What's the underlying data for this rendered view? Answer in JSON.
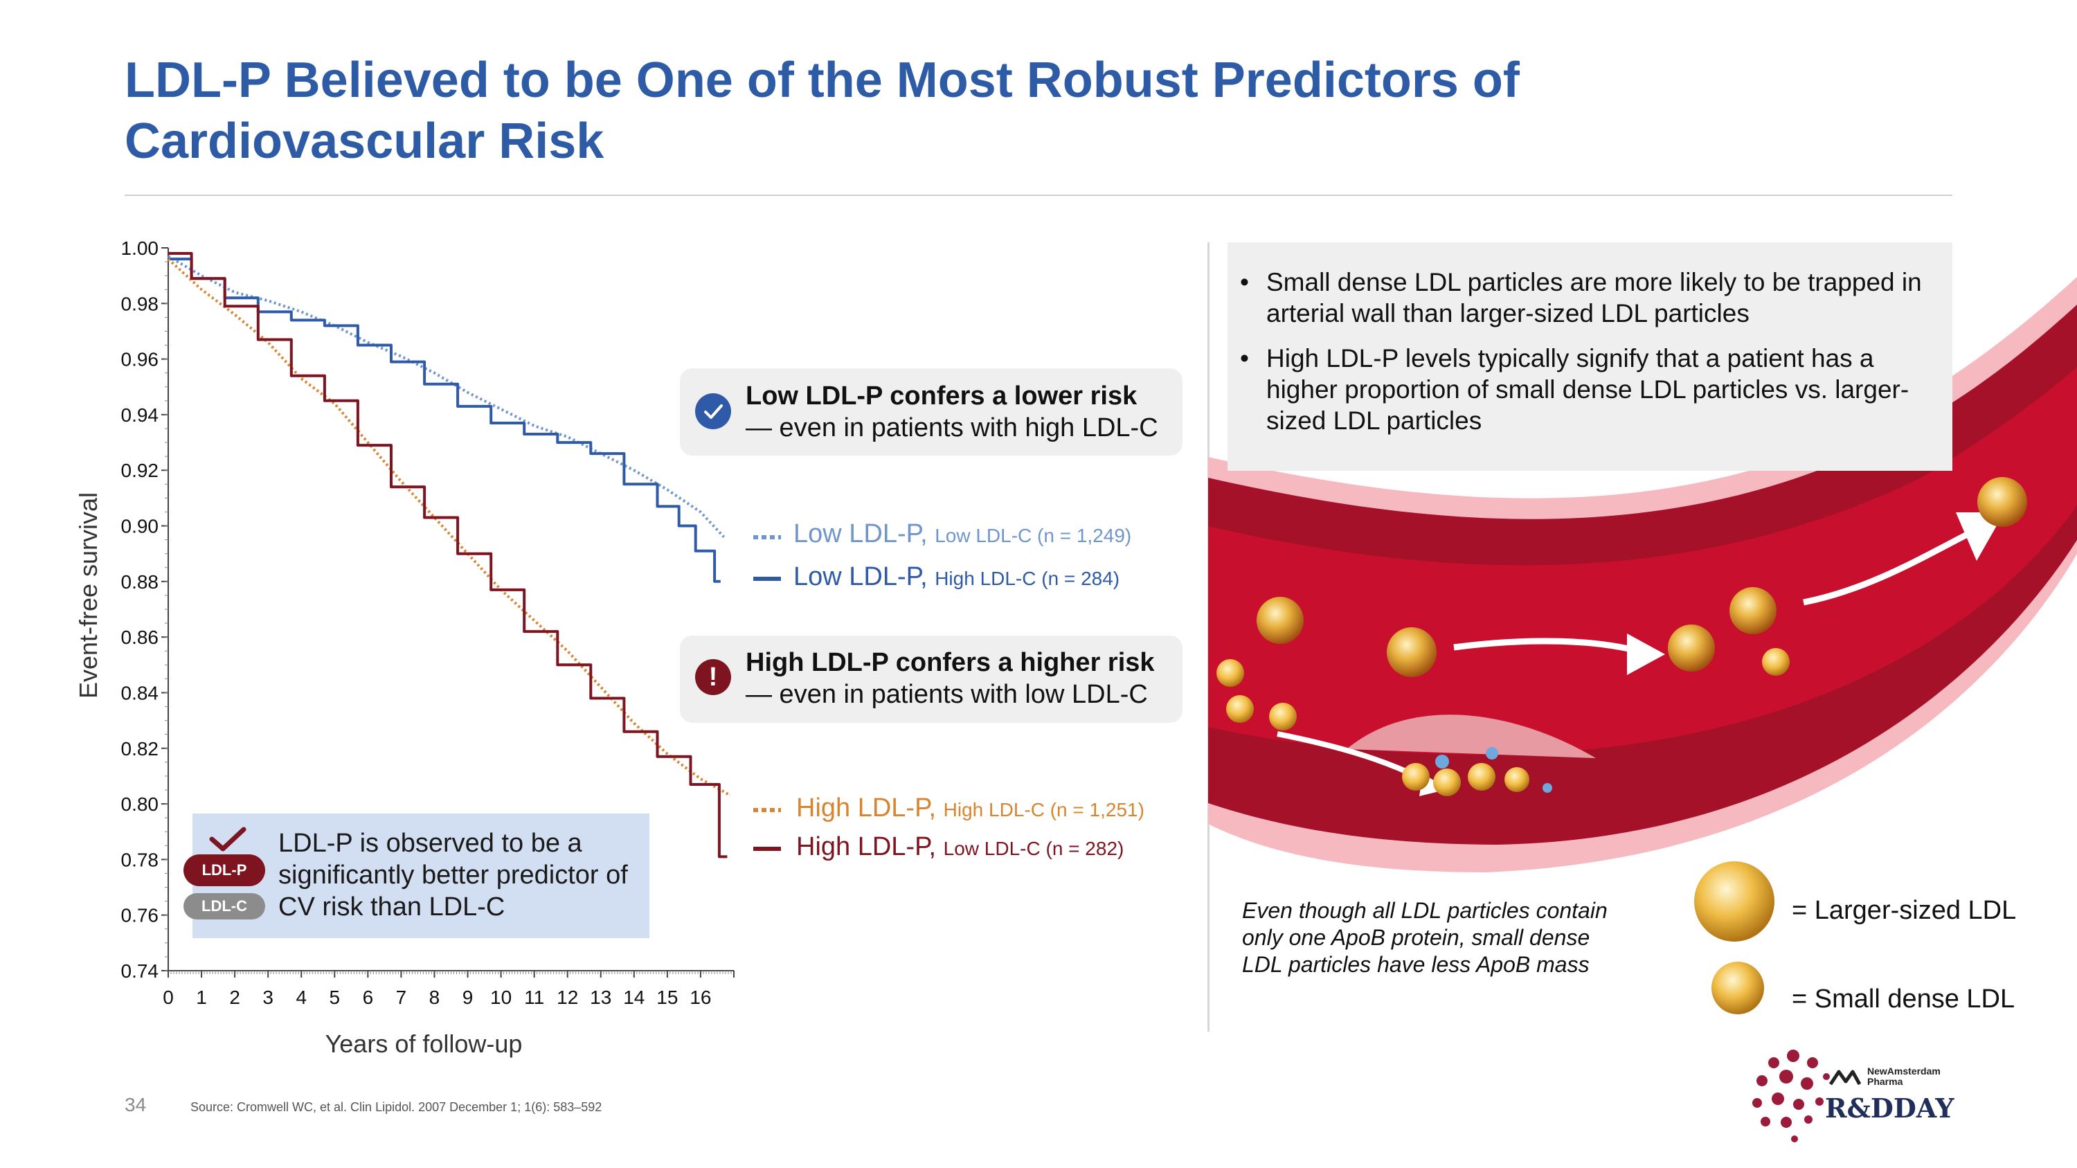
{
  "page": {
    "title": "LDL-P Believed to be One of the Most Robust Predictors of Cardiovascular Risk",
    "page_number": "34",
    "source": "Source: Cromwell WC, et al. Clin Lipidol. 2007 December 1; 1(6): 583–592"
  },
  "colors": {
    "title": "#2e5ba6",
    "low_ldlp_low_ldlc": "#6f95cf",
    "low_ldlp_high_ldlc": "#2f5aa8",
    "high_ldlp_high_ldlc": "#d9842e",
    "high_ldlp_low_ldlc": "#7d1420",
    "vessel": "#b3142b"
  },
  "callouts": {
    "low": {
      "title": "Low LDL-P confers a lower risk",
      "sub": "— even in patients with high LDL-C",
      "icon": "check-circle-icon"
    },
    "high": {
      "title": "High LDL-P confers a higher risk",
      "sub": "— even in patients with low LDL-C",
      "icon": "exclamation-circle-icon"
    }
  },
  "legend": {
    "low_low": {
      "main": "Low LDL-P,",
      "sub": "Low LDL-C (n = 1,249)"
    },
    "low_high": {
      "main": "Low LDL-P,",
      "sub": "High LDL-C (n = 284)"
    },
    "high_high": {
      "main": "High LDL-P,",
      "sub": "High LDL-C (n = 1,251)"
    },
    "high_low": {
      "main": "High LDL-P,",
      "sub": "Low LDL-C (n = 282)"
    }
  },
  "infobox": {
    "text": "LDL-P is observed to be a significantly better predictor of CV risk than LDL-C",
    "pill_ldlp": "LDL-P",
    "pill_ldlc": "LDL-C"
  },
  "bullets": [
    "Small dense LDL particles are more likely to be trapped in arterial wall than larger-sized LDL particles",
    "High LDL-P levels typically signify that a patient has a higher proportion of small dense LDL particles vs. larger-sized LDL particles"
  ],
  "illustration": {
    "note": "Even though all LDL particles contain only one ApoB protein, small dense LDL particles have less ApoB mass",
    "large_label": "= Larger-sized LDL",
    "small_label": "= Small dense LDL"
  },
  "logo": {
    "brand": "NewAmsterdam Pharma",
    "event": "R&DDAY"
  },
  "chart_data": {
    "type": "line",
    "title": "",
    "xlabel": "Years of follow-up",
    "ylabel": "Event-free survival",
    "xlim": [
      0,
      17
    ],
    "ylim": [
      0.74,
      1.0
    ],
    "xticks": [
      "0",
      "1",
      "2",
      "3",
      "4",
      "5",
      "6",
      "7",
      "8",
      "9",
      "10",
      "11",
      "12",
      "13",
      "14",
      "15",
      "16"
    ],
    "yticks": [
      "1.00",
      "0.98",
      "0.96",
      "0.94",
      "0.92",
      "0.90",
      "0.88",
      "0.86",
      "0.84",
      "0.82",
      "0.80",
      "0.78",
      "0.76",
      "0.74"
    ],
    "series": [
      {
        "name": "Low LDL-P, Low LDL-C (n = 1,249)",
        "style": "dotted",
        "color": "#6f95cf",
        "x": [
          0,
          1,
          2,
          3,
          4,
          5,
          6,
          7,
          8,
          9,
          10,
          11,
          12,
          13,
          14,
          15,
          16,
          16.7
        ],
        "y": [
          0.997,
          0.99,
          0.984,
          0.981,
          0.977,
          0.972,
          0.966,
          0.961,
          0.955,
          0.948,
          0.942,
          0.936,
          0.932,
          0.926,
          0.92,
          0.913,
          0.905,
          0.896
        ]
      },
      {
        "name": "Low LDL-P, High LDL-C (n = 284)",
        "style": "solid",
        "color": "#2f5aa8",
        "x": [
          0,
          1,
          2,
          3,
          4,
          5,
          6,
          7,
          8,
          9,
          10,
          11,
          12,
          13,
          14,
          15,
          15.5,
          16,
          16.6
        ],
        "y": [
          0.996,
          0.989,
          0.982,
          0.977,
          0.974,
          0.972,
          0.965,
          0.959,
          0.951,
          0.943,
          0.937,
          0.933,
          0.93,
          0.926,
          0.915,
          0.907,
          0.9,
          0.891,
          0.88
        ]
      },
      {
        "name": "High LDL-P, High LDL-C (n = 1,251)",
        "style": "dotted",
        "color": "#d9842e",
        "x": [
          0,
          1,
          2,
          3,
          4,
          5,
          6,
          7,
          8,
          9,
          10,
          11,
          12,
          13,
          14,
          15,
          16,
          16.9
        ],
        "y": [
          0.996,
          0.985,
          0.976,
          0.966,
          0.953,
          0.944,
          0.93,
          0.916,
          0.903,
          0.89,
          0.877,
          0.866,
          0.855,
          0.842,
          0.829,
          0.818,
          0.809,
          0.803
        ]
      },
      {
        "name": "High LDL-P, Low LDL-C (n = 282)",
        "style": "solid",
        "color": "#7d1420",
        "x": [
          0,
          1,
          2,
          3,
          4,
          5,
          6,
          7,
          8,
          9,
          10,
          11,
          12,
          13,
          14,
          15,
          16,
          16.8
        ],
        "y": [
          0.998,
          0.989,
          0.979,
          0.967,
          0.954,
          0.945,
          0.929,
          0.914,
          0.903,
          0.89,
          0.877,
          0.862,
          0.85,
          0.838,
          0.826,
          0.817,
          0.807,
          0.781
        ]
      }
    ]
  }
}
